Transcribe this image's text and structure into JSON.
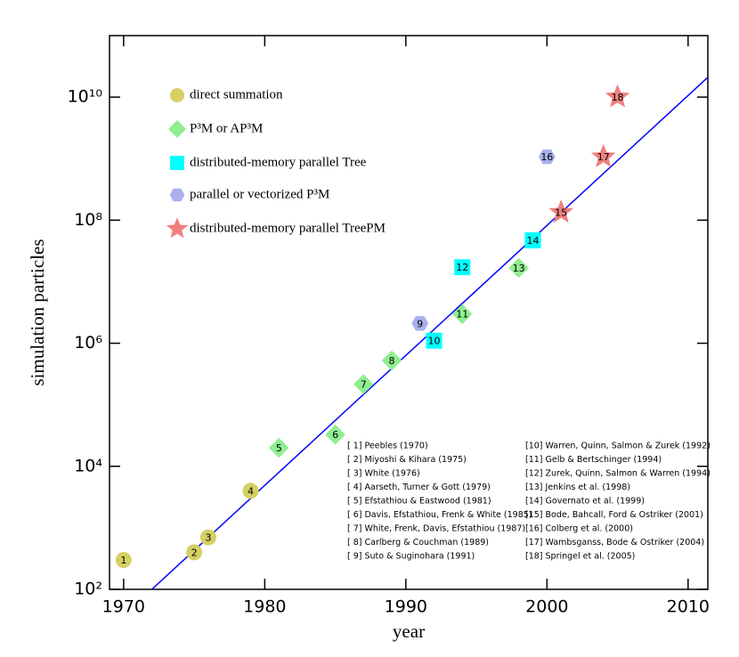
{
  "chart_data": {
    "type": "scatter",
    "xlabel": "year",
    "ylabel": "simulation particles",
    "xlim": [
      1969,
      2011.4
    ],
    "ylim": [
      100,
      100000000000
    ],
    "log_y": true,
    "xticks": [
      1970,
      1980,
      1990,
      2000,
      2010
    ],
    "yticks": [
      {
        "value": 100,
        "label": "10²"
      },
      {
        "value": 10000,
        "label": "10⁴"
      },
      {
        "value": 1000000,
        "label": "10⁶"
      },
      {
        "value": 100000000,
        "label": "10⁸"
      },
      {
        "value": 10000000000,
        "label": "10¹⁰"
      }
    ],
    "series": [
      {
        "name": "direct summation",
        "color": "#d6cf63",
        "marker": "circle",
        "x": [
          1970,
          1975,
          1976,
          1979
        ],
        "values": [
          300,
          400,
          700,
          4000
        ],
        "labels": [
          "1",
          "2",
          "3",
          "4"
        ]
      },
      {
        "name": "P³M or AP³M",
        "color": "#90ee90",
        "marker": "diamond",
        "x": [
          1981,
          1985,
          1987,
          1989,
          1994,
          1998
        ],
        "values": [
          20000,
          32768,
          216000,
          524288,
          2985984,
          16777216
        ],
        "labels": [
          "5",
          "6",
          "7",
          "8",
          "11",
          "13"
        ]
      },
      {
        "name": "distributed-memory parallel Tree",
        "color": "#00ffff",
        "marker": "square",
        "x": [
          1992,
          1994,
          1999
        ],
        "values": [
          1100000,
          17200000,
          47000000
        ],
        "labels": [
          "10",
          "12",
          "14"
        ]
      },
      {
        "name": "parallel or vectorized P³M",
        "color": "#aab0ee",
        "marker": "hexagon",
        "x": [
          1991,
          2000
        ],
        "values": [
          2097152,
          1073741824
        ],
        "labels": [
          "9",
          "16"
        ]
      },
      {
        "name": "distributed-memory parallel TreePM",
        "color": "#f08080",
        "marker": "star",
        "x": [
          2001,
          2004,
          2005
        ],
        "values": [
          134217728,
          1073741824,
          10077696000
        ],
        "labels": [
          "15",
          "17",
          "18"
        ]
      }
    ],
    "fit": {
      "color": "#0000ff",
      "x": [
        1972,
        2011.4
      ],
      "values": [
        100,
        21000000000
      ]
    },
    "references": [
      "[ 1] Peebles (1970)",
      "[ 2] Miyoshi & Kihara (1975)",
      "[ 3] White (1976)",
      "[ 4] Aarseth, Turner & Gott (1979)",
      "[ 5] Efstathiou & Eastwood (1981)",
      "[ 6] Davis, Efstathiou, Frenk & White (1985)",
      "[ 7] White, Frenk, Davis, Efstathiou (1987)",
      "[ 8] Carlberg & Couchman (1989)",
      "[ 9] Suto & Suginohara (1991)",
      "[10] Warren, Quinn, Salmon & Zurek (1992)",
      "[11] Gelb & Bertschinger (1994)",
      "[12] Zurek, Quinn, Salmon & Warren (1994)",
      "[13] Jenkins et al. (1998)",
      "[14] Governato et al. (1999)",
      "[15] Bode, Bahcall, Ford & Ostriker (2001)",
      "[16] Colberg et al. (2000)",
      "[17] Wambsganss, Bode & Ostriker (2004)",
      "[18] Springel et al. (2005)"
    ]
  }
}
